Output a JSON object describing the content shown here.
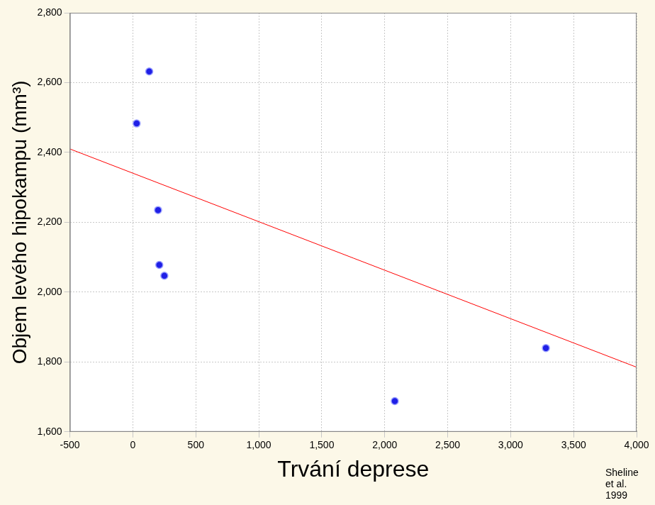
{
  "chart_data": {
    "type": "scatter",
    "x_label": "Trvání deprese",
    "y_label": "Objem levého hipokampu (mm³)",
    "annotations": [
      "Sheline et al. 1999"
    ],
    "series": [
      {
        "type": "scatter",
        "marker": "circle",
        "color": "#1f1fe6",
        "x": [
          30,
          130,
          200,
          210,
          250,
          2080,
          3280
        ],
        "values": [
          2483,
          2632,
          2235,
          2078,
          2047,
          1688,
          1840
        ]
      },
      {
        "type": "line",
        "line_style": "solid",
        "color": "#ff0000",
        "x": [
          -500,
          4000
        ],
        "values": [
          2410,
          1785
        ]
      }
    ],
    "xlim": [
      -500,
      4000
    ],
    "xticks": [
      -500,
      0,
      500,
      1000,
      1500,
      2000,
      2500,
      3000,
      3500,
      4000
    ],
    "ylim": [
      1600,
      2800
    ],
    "yticks": [
      1600,
      1800,
      2000,
      2200,
      2400,
      2600,
      2800
    ],
    "grid": true
  }
}
